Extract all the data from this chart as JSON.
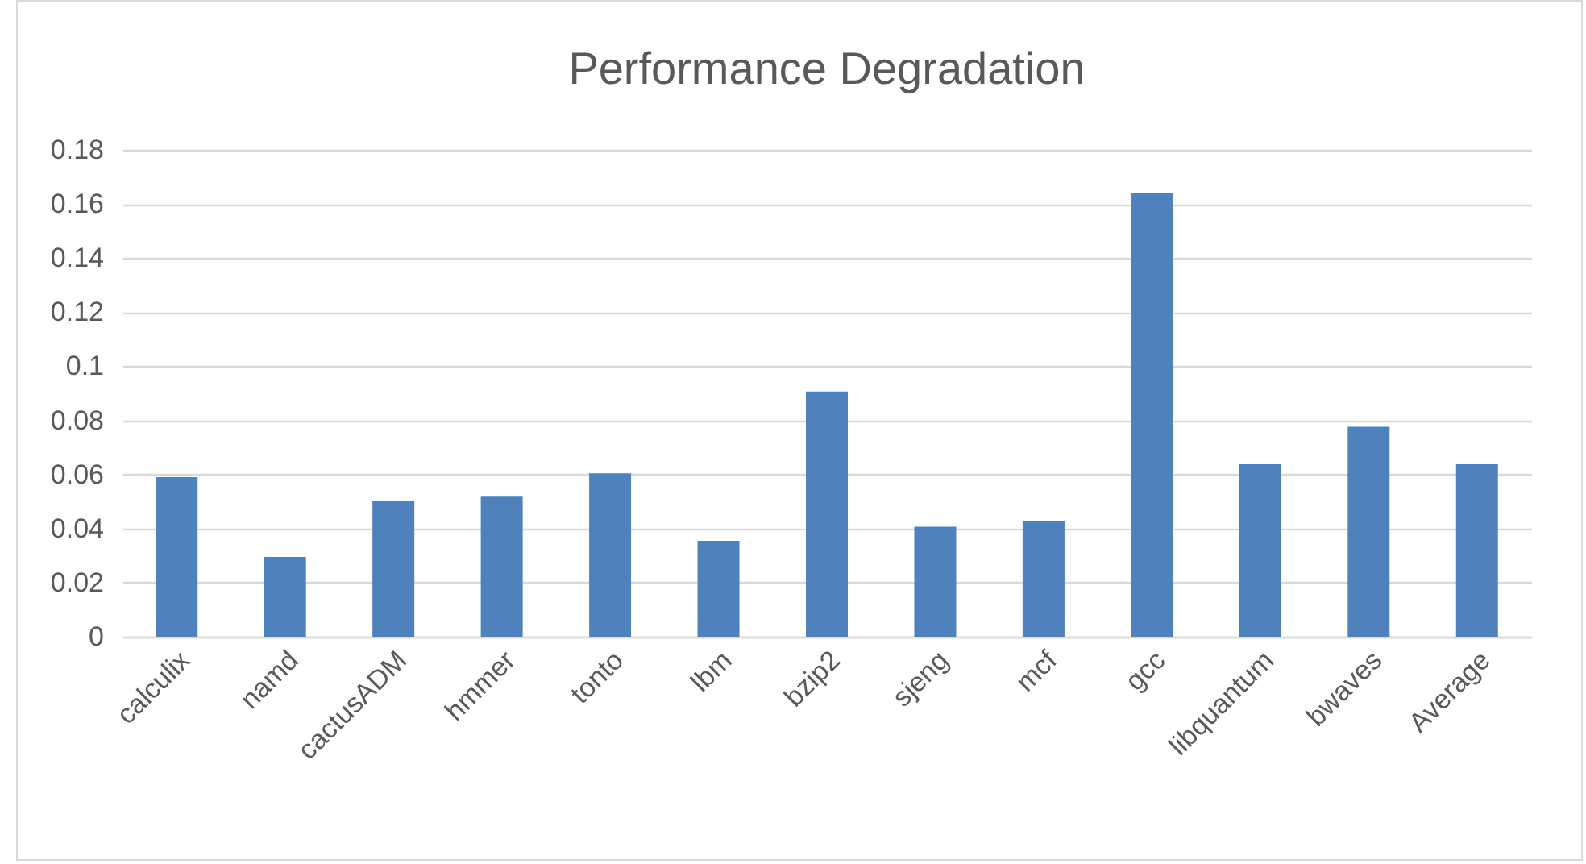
{
  "chart_data": {
    "type": "bar",
    "title": "Performance Degradation",
    "categories": [
      "calculix",
      "namd",
      "cactusADM",
      "hmmer",
      "tonto",
      "lbm",
      "bzip2",
      "sjeng",
      "mcf",
      "gcc",
      "libquantum",
      "bwaves",
      "Average"
    ],
    "values": [
      0.059,
      0.0295,
      0.0503,
      0.0518,
      0.0604,
      0.0355,
      0.0907,
      0.0407,
      0.0429,
      0.164,
      0.0638,
      0.0776,
      0.0638
    ],
    "color": "#4f81bd",
    "ylim": [
      0,
      0.18
    ],
    "yticks": [
      0,
      0.02,
      0.04,
      0.06,
      0.08,
      0.1,
      0.12,
      0.14,
      0.16,
      0.18
    ],
    "grid": "y"
  }
}
